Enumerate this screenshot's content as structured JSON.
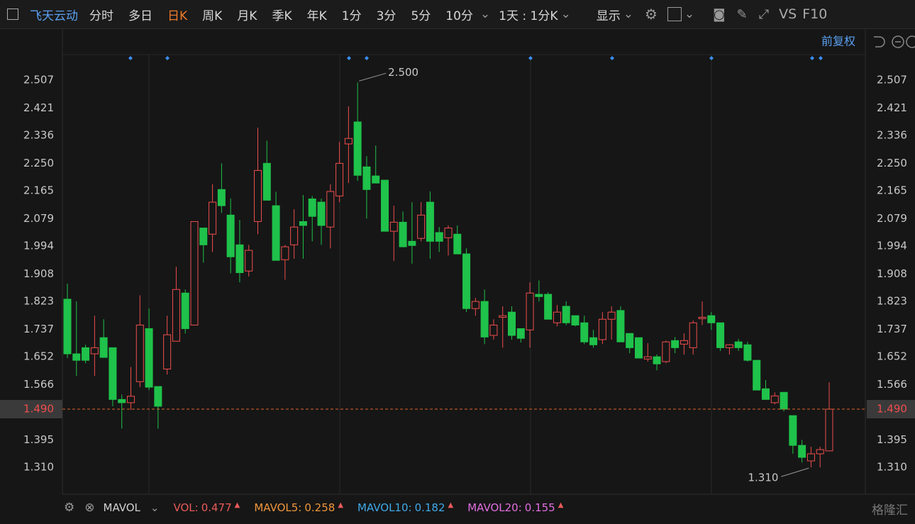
{
  "toolbar": {
    "symbol": "飞天云动",
    "periods": [
      "分时",
      "多日",
      "日K",
      "周K",
      "月K",
      "季K",
      "年K",
      "1分",
      "3分",
      "5分",
      "10分"
    ],
    "interval": "1天 : 1分K",
    "display": "显示",
    "compare": "VS",
    "f10": "F10"
  },
  "adjust": "前复权",
  "chart_data": {
    "type": "candlestick",
    "open": [
      1.83,
      1.661,
      1.68,
      1.661,
      1.711,
      1.68,
      1.52,
      1.51,
      1.575,
      1.739,
      1.56,
      1.614,
      1.7,
      1.849,
      1.75,
      2.05,
      2.031,
      2.169,
      2.09,
      1.998,
      1.917,
      2.07,
      2.25,
      2.119,
      1.952,
      1.998,
      2.07,
      2.14,
      2.13,
      2.053,
      2.149,
      2.31,
      2.378,
      2.239,
      2.211,
      2.198,
      2.04,
      2.068,
      2.009,
      2.018,
      2.13,
      2.036,
      2.02,
      2.031,
      1.97,
      1.801,
      1.823,
      1.718,
      1.774,
      1.79,
      1.739,
      1.735,
      1.845,
      1.845,
      1.757,
      1.808,
      1.779,
      1.757,
      1.711,
      1.705,
      1.768,
      1.795,
      1.724,
      1.711,
      1.645,
      1.652,
      1.637,
      1.702,
      1.691,
      1.68,
      1.77,
      1.779,
      1.757,
      1.68,
      1.698,
      1.689,
      1.641,
      1.553,
      1.51,
      1.542,
      1.47,
      1.378,
      1.33,
      1.352,
      1.361
    ],
    "high": [
      1.878,
      1.823,
      1.689,
      1.779,
      1.768,
      1.68,
      1.535,
      1.62,
      1.842,
      1.801,
      1.56,
      1.779,
      1.93,
      1.86,
      2.07,
      2.05,
      2.185,
      2.25,
      2.141,
      2.075,
      1.998,
      2.36,
      2.32,
      2.162,
      1.998,
      2.108,
      2.152,
      2.149,
      2.141,
      2.185,
      2.316,
      2.426,
      2.5,
      2.272,
      2.305,
      2.198,
      2.119,
      2.101,
      2.13,
      2.13,
      2.163,
      2.053,
      2.058,
      2.058,
      1.987,
      1.834,
      1.86,
      1.768,
      1.808,
      1.808,
      1.739,
      1.882,
      1.888,
      1.851,
      1.812,
      1.823,
      1.779,
      1.779,
      1.735,
      1.79,
      1.808,
      1.808,
      1.724,
      1.711,
      1.694,
      1.659,
      1.702,
      1.713,
      1.724,
      1.764,
      1.823,
      1.79,
      1.757,
      1.691,
      1.707,
      1.698,
      1.641,
      1.58,
      1.542,
      1.542,
      1.47,
      1.395,
      1.374,
      1.374,
      1.573
    ],
    "low": [
      1.648,
      1.593,
      1.632,
      1.593,
      1.65,
      1.499,
      1.43,
      1.488,
      1.558,
      1.549,
      1.43,
      1.597,
      1.7,
      1.724,
      1.75,
      1.943,
      1.976,
      2.097,
      1.91,
      1.882,
      1.9,
      2.031,
      2.136,
      1.95,
      1.89,
      1.955,
      1.955,
      2.009,
      1.998,
      1.987,
      2.13,
      2.189,
      2.196,
      2.079,
      2.189,
      2.04,
      1.948,
      1.992,
      1.94,
      2.009,
      1.955,
      1.976,
      1.965,
      1.97,
      1.79,
      1.779,
      1.691,
      1.705,
      1.68,
      1.705,
      1.696,
      1.68,
      1.823,
      1.768,
      1.746,
      1.75,
      1.746,
      1.691,
      1.68,
      1.691,
      1.705,
      1.698,
      1.663,
      1.648,
      1.637,
      1.61,
      1.632,
      1.663,
      1.659,
      1.659,
      1.75,
      1.735,
      1.67,
      1.659,
      1.67,
      1.637,
      1.549,
      1.52,
      1.505,
      1.483,
      1.352,
      1.325,
      1.31,
      1.31,
      1.361
    ],
    "close": [
      1.661,
      1.641,
      1.641,
      1.68,
      1.65,
      1.52,
      1.51,
      1.53,
      1.75,
      1.558,
      1.499,
      1.72,
      1.86,
      1.739,
      2.07,
      1.998,
      2.13,
      2.119,
      1.961,
      1.912,
      1.981,
      2.228,
      2.136,
      1.95,
      1.992,
      2.053,
      2.058,
      2.086,
      2.058,
      2.163,
      2.25,
      2.327,
      2.213,
      2.169,
      2.189,
      2.04,
      2.068,
      1.992,
      1.996,
      2.09,
      2.009,
      2.009,
      2.05,
      1.97,
      1.801,
      1.823,
      1.713,
      1.75,
      1.779,
      1.718,
      1.709,
      1.849,
      1.838,
      1.768,
      1.79,
      1.757,
      1.75,
      1.698,
      1.689,
      1.768,
      1.79,
      1.698,
      1.68,
      1.648,
      1.652,
      1.63,
      1.698,
      1.68,
      1.702,
      1.757,
      1.774,
      1.757,
      1.68,
      1.689,
      1.68,
      1.641,
      1.549,
      1.52,
      1.531,
      1.49,
      1.378,
      1.341,
      1.352,
      1.365,
      1.49
    ],
    "up_color": "#ef4d4d",
    "down_color": "#1fc24a",
    "ylim": [
      1.227,
      2.584
    ],
    "yticks": [
      2.507,
      2.421,
      2.336,
      {
        "value": 2.25,
        "label": "2.250"
      },
      2.165,
      2.079,
      1.994,
      1.908,
      1.823,
      1.737,
      1.652,
      1.566,
      1.395,
      {
        "value": 1.31,
        "label": "1.310"
      }
    ],
    "last_price": {
      "value": 1.49,
      "label": "1.490"
    },
    "annotations": [
      {
        "value": 2.5,
        "label": "2.500"
      },
      {
        "value": 1.31,
        "label": "1.310"
      }
    ],
    "grid": false
  },
  "indicator": {
    "name": "MAVOL",
    "items": [
      {
        "label": "VOL:",
        "value": 0.477,
        "color": "#e85a5a"
      },
      {
        "label": "MAVOL5:",
        "value": 0.258,
        "color": "#f0963c"
      },
      {
        "label": "MAVOL10:",
        "value": 0.182,
        "color": "#3fa9e8"
      },
      {
        "label": "MAVOL20:",
        "value": 0.155,
        "color": "#e06ee0"
      }
    ]
  },
  "watermark": "格隆汇"
}
